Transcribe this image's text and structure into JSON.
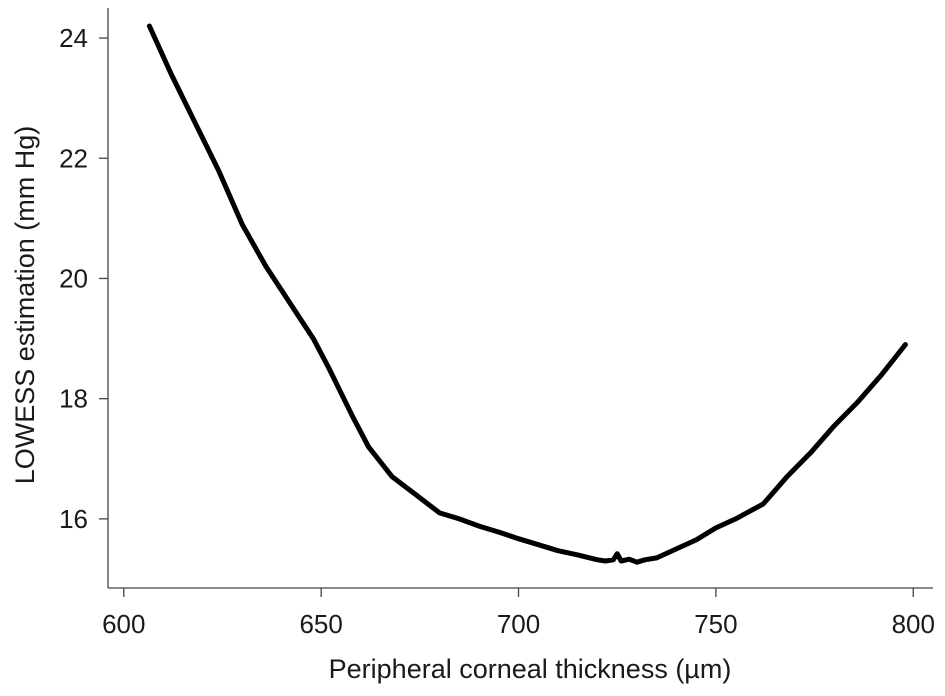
{
  "chart_data": {
    "type": "line",
    "title": "",
    "xlabel": "Peripheral corneal thickness (µm)",
    "ylabel": "LOWESS estimation (mm Hg)",
    "xlim": [
      596,
      805
    ],
    "ylim": [
      14.85,
      24.5
    ],
    "xticks": [
      600,
      650,
      700,
      750,
      800
    ],
    "xtick_labels": [
      "600",
      "650",
      "700",
      "750",
      "800"
    ],
    "yticks": [
      16,
      18,
      20,
      22,
      24
    ],
    "ytick_labels": [
      "16",
      "18",
      "20",
      "22",
      "24"
    ],
    "grid": false,
    "legend": "none",
    "line_color": "#000000",
    "series": [
      {
        "x": [
          606.5,
          612,
          618,
          624,
          630,
          636,
          642,
          648,
          652,
          655,
          658,
          662,
          668,
          674,
          680,
          685,
          690,
          695,
          700,
          705,
          710,
          715,
          720,
          722,
          724,
          725,
          726,
          728,
          730,
          732,
          735,
          740,
          745,
          750,
          755,
          762,
          768,
          774,
          780,
          786,
          792,
          798
        ],
        "y": [
          24.2,
          23.4,
          22.6,
          21.8,
          20.9,
          20.2,
          19.6,
          19.0,
          18.5,
          18.1,
          17.7,
          17.2,
          16.7,
          16.4,
          16.1,
          16.0,
          15.88,
          15.78,
          15.67,
          15.57,
          15.47,
          15.4,
          15.32,
          15.3,
          15.32,
          15.42,
          15.3,
          15.33,
          15.28,
          15.32,
          15.35,
          15.5,
          15.65,
          15.85,
          16.0,
          16.25,
          16.7,
          17.1,
          17.55,
          17.95,
          18.4,
          18.9
        ]
      }
    ]
  }
}
